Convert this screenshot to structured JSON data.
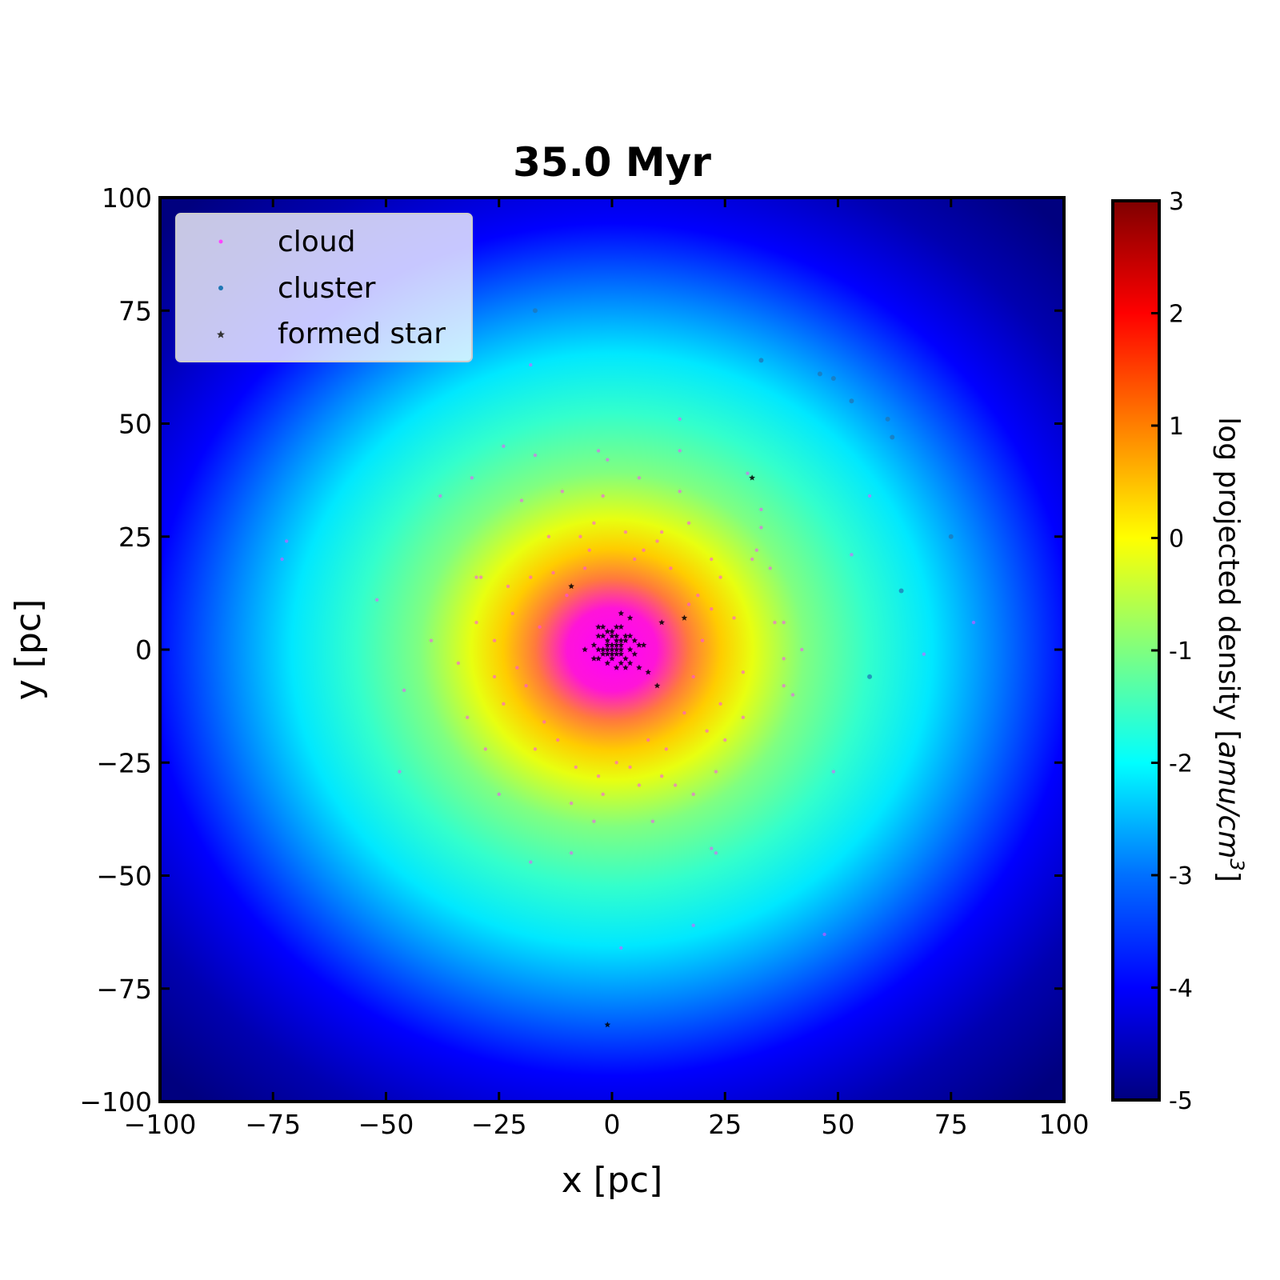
{
  "chart_data": {
    "type": "scatter",
    "title": "35.0 Myr",
    "xlabel": "x [pc]",
    "ylabel": "y [pc]",
    "xlim": [
      -100,
      100
    ],
    "ylim": [
      -100,
      100
    ],
    "x_ticks": [
      -100,
      -75,
      -50,
      -25,
      0,
      25,
      50,
      75,
      100
    ],
    "y_ticks": [
      -100,
      -75,
      -50,
      -25,
      0,
      25,
      50,
      75,
      100
    ],
    "x_tick_labels": [
      "−100",
      "−75",
      "−50",
      "−25",
      "0",
      "25",
      "50",
      "75",
      "100"
    ],
    "y_tick_labels": [
      "−100",
      "−75",
      "−50",
      "−25",
      "0",
      "25",
      "50",
      "75",
      "100"
    ],
    "grid": false,
    "legend_placement": "top-left",
    "colorbar": {
      "label_main": "log projected density [",
      "label_units": "amu/cm",
      "label_exp": "3",
      "label_close": "]",
      "range": [
        -5,
        3
      ],
      "ticks": [
        "3",
        "2",
        "1",
        "0",
        "-1",
        "-2",
        "-3",
        "-4",
        "-5"
      ],
      "colormap": [
        "#00007f",
        "#0000ff",
        "#00ffff",
        "#7fff7f",
        "#ffff00",
        "#ff7f00",
        "#ff0000",
        "#7f0000"
      ]
    },
    "density_map": {
      "center": [
        0,
        0
      ],
      "peak_log_density": 0.7,
      "background_log_density": -4.8,
      "color_peak_core": "#ff00ff"
    },
    "series": [
      {
        "name": "cloud",
        "marker": "dot",
        "color": "#ff44ff",
        "points": [
          [
            -73,
            20
          ],
          [
            -72,
            24
          ],
          [
            -52,
            11
          ],
          [
            -47,
            -27
          ],
          [
            -46,
            -9
          ],
          [
            -38,
            34
          ],
          [
            -31,
            38
          ],
          [
            -30,
            16
          ],
          [
            -29,
            16
          ],
          [
            -28,
            -22
          ],
          [
            -25,
            -32
          ],
          [
            -24,
            45
          ],
          [
            -18,
            63
          ],
          [
            -18,
            -47
          ],
          [
            -17,
            43
          ],
          [
            -9,
            -34
          ],
          [
            -9,
            -45
          ],
          [
            -3,
            44
          ],
          [
            -1,
            42
          ],
          [
            -2,
            -32
          ],
          [
            1,
            -25
          ],
          [
            2,
            -66
          ],
          [
            6,
            38
          ],
          [
            9,
            -38
          ],
          [
            15,
            51
          ],
          [
            15,
            44
          ],
          [
            15,
            35
          ],
          [
            14,
            -30
          ],
          [
            17,
            28
          ],
          [
            18,
            -32
          ],
          [
            18,
            -61
          ],
          [
            22,
            -44
          ],
          [
            23,
            -45
          ],
          [
            23,
            -27
          ],
          [
            27,
            7
          ],
          [
            29,
            -5
          ],
          [
            30,
            39
          ],
          [
            31,
            20
          ],
          [
            32,
            22
          ],
          [
            33,
            27
          ],
          [
            33,
            31
          ],
          [
            35,
            18
          ],
          [
            36,
            6
          ],
          [
            38,
            6
          ],
          [
            38,
            -2
          ],
          [
            38,
            -8
          ],
          [
            40,
            -10
          ],
          [
            42,
            0
          ],
          [
            49,
            -27
          ],
          [
            53,
            21
          ],
          [
            57,
            34
          ],
          [
            69,
            -1
          ],
          [
            80,
            6
          ],
          [
            47,
            -63
          ],
          [
            -40,
            2
          ],
          [
            -34,
            -3
          ],
          [
            -32,
            -15
          ],
          [
            -26,
            2
          ],
          [
            -20,
            33
          ],
          [
            -14,
            25
          ],
          [
            -11,
            35
          ],
          [
            -4,
            28
          ],
          [
            -7,
            25
          ],
          [
            -5,
            22
          ],
          [
            7,
            22
          ],
          [
            11,
            26
          ],
          [
            19,
            12
          ],
          [
            22,
            9
          ],
          [
            24,
            -12
          ],
          [
            24,
            16
          ],
          [
            -22,
            8
          ],
          [
            -21,
            -4
          ],
          [
            -19,
            -8
          ],
          [
            -16,
            5
          ],
          [
            -15,
            -16
          ],
          [
            -13,
            17
          ],
          [
            -12,
            -20
          ],
          [
            -10,
            12
          ],
          [
            -8,
            -26
          ],
          [
            -6,
            18
          ],
          [
            -3,
            -28
          ],
          [
            3,
            26
          ],
          [
            4,
            -26
          ],
          [
            5,
            20
          ],
          [
            8,
            -20
          ],
          [
            10,
            24
          ],
          [
            12,
            -22
          ],
          [
            13,
            18
          ],
          [
            16,
            -14
          ],
          [
            17,
            10
          ],
          [
            18,
            -6
          ],
          [
            20,
            2
          ],
          [
            21,
            -18
          ],
          [
            -24,
            -12
          ],
          [
            -26,
            -6
          ],
          [
            -23,
            14
          ],
          [
            22,
            20
          ],
          [
            25,
            -20
          ],
          [
            -18,
            16
          ],
          [
            -17,
            -22
          ],
          [
            6,
            -30
          ],
          [
            -2,
            34
          ],
          [
            11,
            -28
          ],
          [
            -30,
            6
          ],
          [
            29,
            -15
          ],
          [
            -4,
            -38
          ]
        ]
      },
      {
        "name": "cluster",
        "marker": "dot",
        "color": "#1f77b4",
        "points": [
          [
            -17,
            75
          ],
          [
            33,
            64
          ],
          [
            46,
            61
          ],
          [
            49,
            60
          ],
          [
            53,
            55
          ],
          [
            61,
            51
          ],
          [
            62,
            47
          ],
          [
            75,
            25
          ],
          [
            64,
            13
          ],
          [
            57,
            -6
          ]
        ]
      },
      {
        "name": "formed star",
        "marker": "star",
        "color": "#000000",
        "points": [
          [
            31,
            38
          ],
          [
            -9,
            14
          ],
          [
            11,
            6
          ],
          [
            16,
            7
          ],
          [
            8,
            -5
          ],
          [
            10,
            -8
          ],
          [
            -1,
            -83
          ],
          [
            -6,
            0
          ],
          [
            2,
            8
          ],
          [
            4,
            7
          ],
          [
            -3,
            5
          ],
          [
            7,
            1
          ],
          [
            6,
            -4
          ],
          [
            0,
            0
          ],
          [
            1,
            1
          ],
          [
            -1,
            2
          ],
          [
            2,
            -1
          ],
          [
            -2,
            -1
          ],
          [
            1,
            3
          ],
          [
            3,
            2
          ],
          [
            -2,
            3
          ],
          [
            0,
            -2
          ],
          [
            2,
            2
          ],
          [
            -1,
            -3
          ],
          [
            3,
            -2
          ],
          [
            1,
            -4
          ],
          [
            -3,
            -2
          ],
          [
            4,
            0
          ],
          [
            -4,
            1
          ],
          [
            0,
            4
          ],
          [
            2,
            5
          ],
          [
            5,
            2
          ],
          [
            -1,
            1
          ],
          [
            1,
            -1
          ],
          [
            0,
            1
          ],
          [
            -1,
            0
          ],
          [
            1,
            0
          ],
          [
            0,
            -1
          ],
          [
            2,
            0
          ],
          [
            -2,
            0
          ],
          [
            3,
            3
          ],
          [
            -3,
            0
          ],
          [
            4,
            3
          ],
          [
            -2,
            5
          ],
          [
            1,
            5
          ],
          [
            5,
            -1
          ],
          [
            -4,
            -2
          ],
          [
            3,
            -4
          ],
          [
            0,
            3
          ],
          [
            2,
            -3
          ],
          [
            -1,
            4
          ],
          [
            4,
            -3
          ],
          [
            -3,
            3
          ],
          [
            6,
            1
          ],
          [
            -1,
            -1
          ],
          [
            1,
            2
          ],
          [
            2,
            1
          ]
        ]
      }
    ],
    "legend": [
      {
        "label": "cloud"
      },
      {
        "label": "cluster"
      },
      {
        "label": "formed star"
      }
    ]
  }
}
